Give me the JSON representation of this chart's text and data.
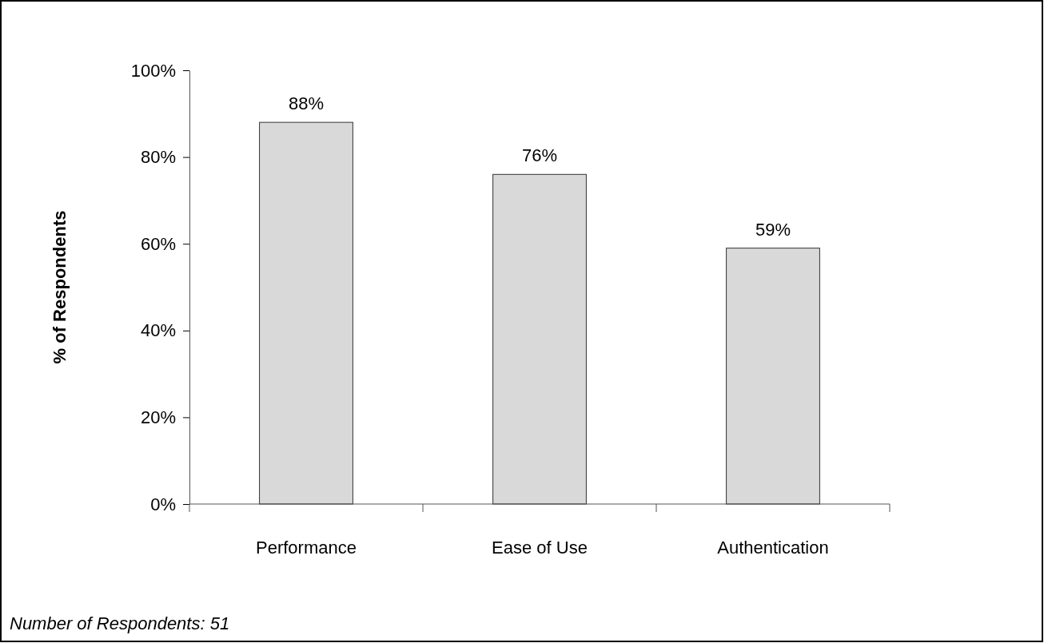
{
  "chart_data": {
    "type": "bar",
    "ylabel": "% of Respondents",
    "categories": [
      "Performance",
      "Ease of Use",
      "Authentication"
    ],
    "values": [
      88,
      76,
      59
    ],
    "color": "#d9d9d9",
    "value_labels": [
      "88%",
      "76%",
      "59%"
    ],
    "ylim": [
      0,
      100
    ],
    "yticks": [
      {
        "value": 0,
        "label": "0%"
      },
      {
        "value": 20,
        "label": "20%"
      },
      {
        "value": 40,
        "label": "40%"
      },
      {
        "value": 60,
        "label": "60%"
      },
      {
        "value": 80,
        "label": "80%"
      },
      {
        "value": 100,
        "label": "100%"
      }
    ],
    "grid": false,
    "annotations": [
      "Number of Respondents: 51"
    ]
  }
}
